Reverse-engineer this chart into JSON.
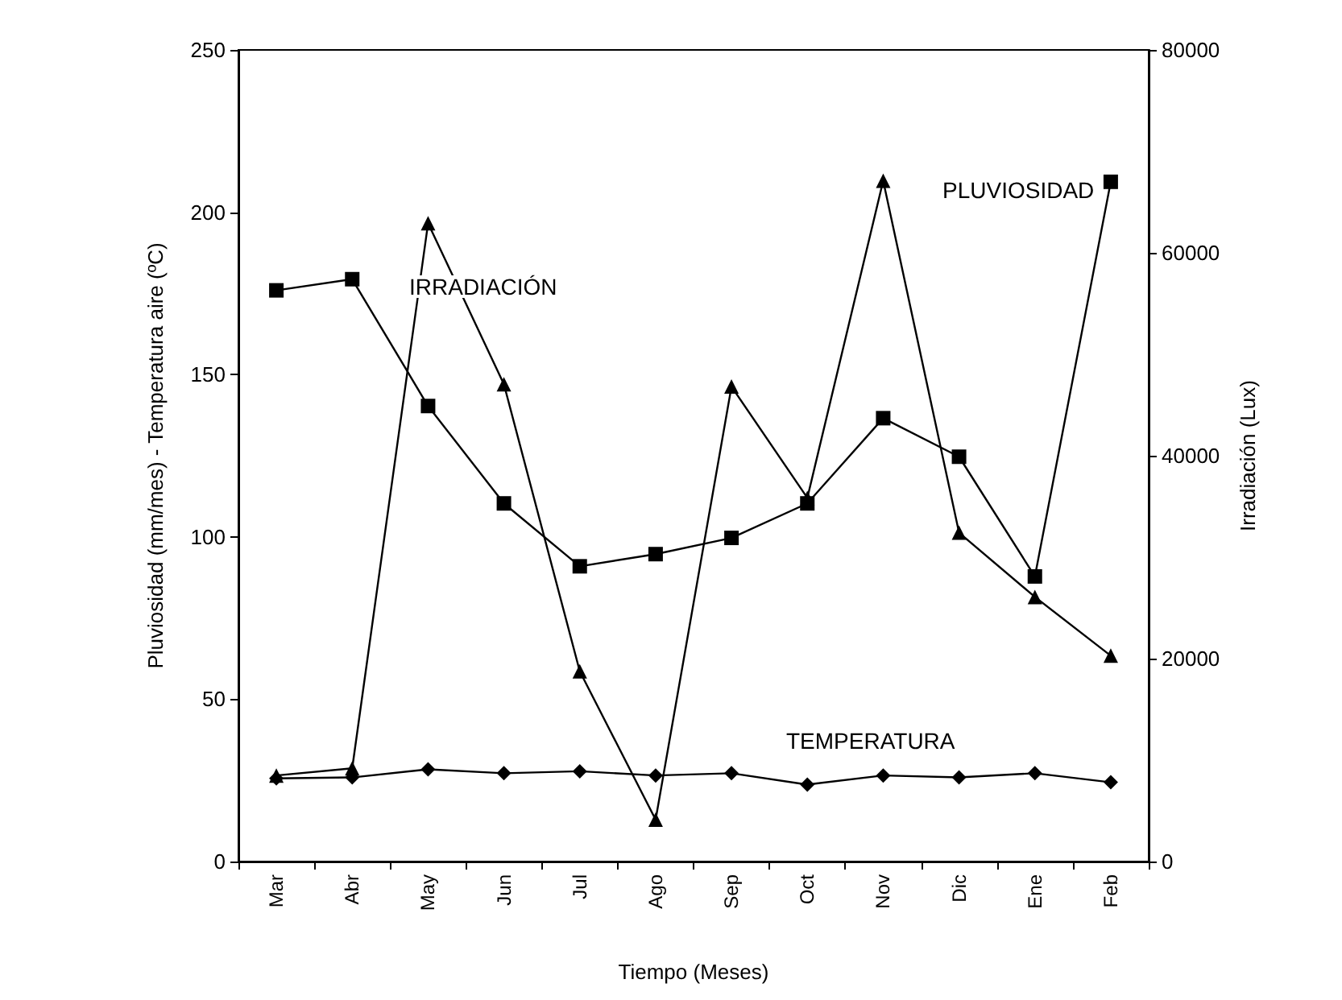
{
  "chart_data": {
    "type": "line",
    "xlabel": "Tiempo (Meses)",
    "ylabel": "Pluviosidad (mm/mes) - Temperatura aire (ºC)",
    "y2label": "Irradiación (Lux)",
    "categories": [
      "Mar",
      "Abr",
      "May",
      "Jun",
      "Jul",
      "Ago",
      "Sep",
      "Oct",
      "Nov",
      "Dic",
      "Ene",
      "Feb"
    ],
    "series": [
      {
        "color": "#000000",
        "marker": "square",
        "axis": "y2",
        "values": [
          56300,
          57400,
          44900,
          35300,
          29100,
          30300,
          31900,
          35300,
          43700,
          39900,
          28100,
          67000
        ]
      },
      {
        "color": "#000000",
        "marker": "triangle",
        "values": [
          26.5,
          28.7,
          196.6,
          147,
          58.6,
          12.9,
          146.3,
          112,
          209.7,
          101.3,
          81.5,
          63.4
        ]
      },
      {
        "color": "#000000",
        "marker": "diamond",
        "values": [
          25.6,
          25.9,
          28.4,
          27.2,
          27.8,
          26.5,
          27.2,
          23.7,
          26.5,
          25.9,
          27.2,
          24.4
        ]
      }
    ],
    "ylim": [
      0,
      250
    ],
    "yticks": [
      0,
      50,
      100,
      150,
      200,
      250
    ],
    "y2lim": [
      0,
      80000
    ],
    "y2ticks": [
      0,
      20000,
      40000,
      60000,
      80000
    ],
    "grid": false,
    "line_style": "solid",
    "annotations": [
      "IRRADIACIÓN",
      "PLUVIOSIDAD",
      "TEMPERATURA"
    ]
  }
}
